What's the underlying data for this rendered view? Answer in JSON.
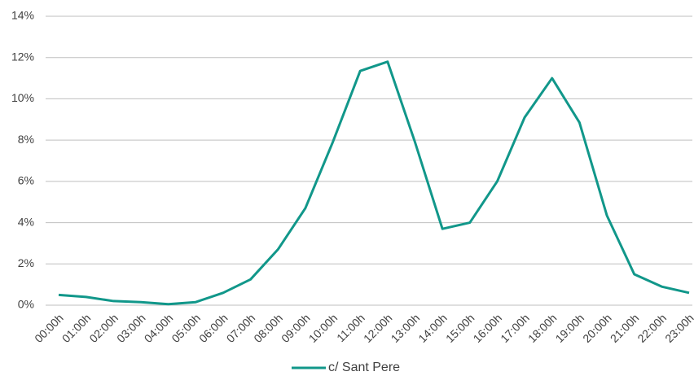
{
  "chart_data": {
    "type": "line",
    "categories": [
      "00:00h",
      "01:00h",
      "02:00h",
      "03:00h",
      "04:00h",
      "05:00h",
      "06:00h",
      "07:00h",
      "08:00h",
      "09:00h",
      "10:00h",
      "11:00h",
      "12:00h",
      "13:00h",
      "14:00h",
      "15:00h",
      "16:00h",
      "17:00h",
      "18:00h",
      "19:00h",
      "20:00h",
      "21:00h",
      "22:00h",
      "23:00h"
    ],
    "series": [
      {
        "name": "c/ Sant Pere",
        "color": "#11978a",
        "values": [
          0.5,
          0.4,
          0.2,
          0.15,
          0.05,
          0.15,
          0.6,
          1.25,
          2.7,
          4.7,
          7.9,
          11.35,
          11.8,
          7.9,
          3.7,
          4.0,
          6.0,
          9.1,
          11.0,
          8.85,
          4.35,
          1.5,
          0.9,
          0.6
        ]
      }
    ],
    "ylim": [
      0,
      14
    ],
    "yticks": [
      {
        "value": 0,
        "label": "0%"
      },
      {
        "value": 2,
        "label": "2%"
      },
      {
        "value": 4,
        "label": "4%"
      },
      {
        "value": 6,
        "label": "6%"
      },
      {
        "value": 8,
        "label": "8%"
      },
      {
        "value": 10,
        "label": "10%"
      },
      {
        "value": 12,
        "label": "12%"
      },
      {
        "value": 14,
        "label": "14%"
      }
    ],
    "grid": true,
    "legend": "bottom"
  }
}
